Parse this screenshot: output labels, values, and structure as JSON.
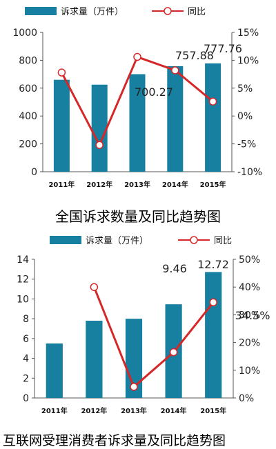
{
  "chart_data": [
    {
      "type": "bar",
      "title": "",
      "categories": [
        "2011年",
        "2012年",
        "2013年",
        "2014年",
        "2015年"
      ],
      "series": [
        {
          "name": "诉求量（万件）",
          "type": "bar",
          "axis": "left",
          "values": [
            660,
            625,
            700.27,
            757.88,
            777.76
          ]
        },
        {
          "name": "同比",
          "type": "line",
          "axis": "right",
          "values": [
            7.8,
            -5.2,
            10.6,
            8.2,
            2.6
          ]
        }
      ],
      "data_labels": [
        {
          "category": "2013年",
          "text": "700.27"
        },
        {
          "category": "2014年",
          "text": "757.88"
        },
        {
          "category": "2015年",
          "text": "777.76"
        }
      ],
      "ylim": [
        0,
        1000
      ],
      "y_ticks": [
        "0",
        "200",
        "400",
        "600",
        "800",
        "1000"
      ],
      "y2lim": [
        -10,
        15
      ],
      "y2_ticks": [
        "-10%",
        "-5%",
        "0%",
        "5%",
        "10%",
        "15%"
      ],
      "legend_position": "top",
      "caption": "全国诉求数量及同比趋势图",
      "colors": {
        "bar": "#177fa0",
        "line": "#d62728",
        "marker_fill": "#ffffff"
      }
    },
    {
      "type": "bar",
      "title": "",
      "categories": [
        "2011年",
        "2012年",
        "2013年",
        "2014年",
        "2015年"
      ],
      "series": [
        {
          "name": "诉求量（万件）",
          "type": "bar",
          "axis": "left",
          "values": [
            5.5,
            7.8,
            8.0,
            9.46,
            12.72
          ]
        },
        {
          "name": "同比",
          "type": "line",
          "axis": "right",
          "values": [
            null,
            40,
            4,
            16.5,
            34.5
          ]
        }
      ],
      "data_labels": [
        {
          "category": "2014年",
          "text": "9.46"
        },
        {
          "category": "2015年",
          "text": "12.72"
        },
        {
          "category": "2015年",
          "text": "34.5%"
        }
      ],
      "ylim": [
        0,
        14
      ],
      "y_ticks": [
        "0",
        "2",
        "4",
        "6",
        "8",
        "10",
        "12",
        "14"
      ],
      "y2lim": [
        0,
        50
      ],
      "y2_ticks": [
        "0%",
        "10%",
        "20%",
        "30%",
        "40%",
        "50%"
      ],
      "legend_position": "top",
      "caption": "互联网受理消费者诉求量及同比趋势图",
      "colors": {
        "bar": "#177fa0",
        "line": "#d62728",
        "marker_fill": "#ffffff"
      }
    }
  ]
}
